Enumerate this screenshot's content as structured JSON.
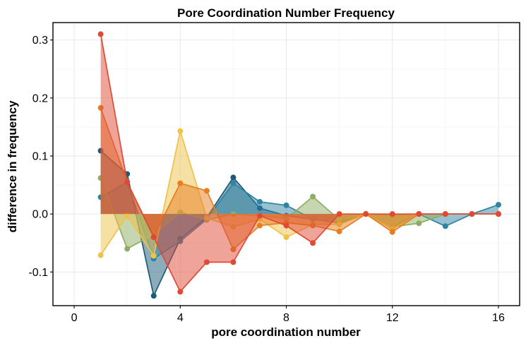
{
  "chart_data": {
    "type": "area",
    "title": "Pore Coordination Number Frequency",
    "xlabel": "pore coordination number",
    "ylabel": "difference in frequency",
    "xlim": [
      -0.8,
      16.8
    ],
    "ylim": [
      -0.158,
      0.33
    ],
    "xticks": [
      0,
      4,
      8,
      12,
      16
    ],
    "xtick_labels": [
      "0",
      "4",
      "8",
      "12",
      "16"
    ],
    "yticks": [
      -0.1,
      0.0,
      0.1,
      0.2,
      0.3
    ],
    "ytick_labels": [
      "-0.1",
      "0.0",
      "0.1",
      "0.2",
      "0.3"
    ],
    "grid": true,
    "colors": {
      "navy": "#1b5a78",
      "teal": "#2f84a4",
      "olive": "#8cae62",
      "yellow": "#efc24a",
      "orange": "#e67e22",
      "red": "#e04a35"
    },
    "series": [
      {
        "color": "#1b5a78",
        "x": [
          1,
          2,
          3,
          4,
          5,
          6,
          7,
          8,
          9,
          10,
          11,
          12,
          13,
          14,
          15,
          16
        ],
        "values": [
          0.109,
          0.069,
          -0.141,
          -0.043,
          -0.006,
          0.063,
          0.01,
          -0.003,
          -0.009,
          -0.015,
          0.0,
          -0.022,
          0.0,
          0.0,
          0.0,
          0.0
        ]
      },
      {
        "color": "#2f84a4",
        "x": [
          1,
          2,
          3,
          4,
          5,
          6,
          7,
          8,
          9,
          10,
          11,
          12,
          13,
          14,
          15,
          16
        ],
        "values": [
          0.029,
          0.055,
          -0.077,
          -0.047,
          -0.009,
          0.053,
          0.021,
          0.015,
          -0.009,
          -0.016,
          0.0,
          -0.003,
          0.0,
          -0.021,
          0.0,
          0.016
        ]
      },
      {
        "color": "#8cae62",
        "x": [
          1,
          2,
          3,
          4,
          5,
          6,
          7,
          8,
          9,
          10,
          11,
          12,
          13,
          14,
          15,
          16
        ],
        "values": [
          0.062,
          -0.06,
          -0.035,
          0.003,
          -0.01,
          0.0,
          -0.003,
          -0.008,
          0.03,
          -0.01,
          0.0,
          -0.022,
          -0.016,
          0.0,
          0.0,
          0.0
        ]
      },
      {
        "color": "#efc24a",
        "x": [
          1,
          2,
          3,
          4,
          5,
          6,
          7,
          8,
          9,
          10,
          11,
          12,
          13,
          14,
          15,
          16
        ],
        "values": [
          -0.071,
          -0.003,
          -0.072,
          0.143,
          -0.007,
          -0.022,
          -0.009,
          -0.04,
          -0.018,
          -0.018,
          0.0,
          -0.026,
          0.0,
          0.0,
          0.0,
          0.0
        ]
      },
      {
        "color": "#e67e22",
        "x": [
          1,
          2,
          3,
          4,
          5,
          6,
          7,
          8,
          9,
          10,
          11,
          12,
          13,
          14,
          15,
          16
        ],
        "values": [
          0.183,
          0.055,
          -0.039,
          0.053,
          0.04,
          -0.061,
          -0.02,
          -0.015,
          -0.02,
          -0.03,
          0.0,
          -0.031,
          0.0,
          0.0,
          0.0,
          0.0
        ]
      },
      {
        "color": "#e04a35",
        "x": [
          1,
          2,
          3,
          4,
          5,
          6,
          7,
          8,
          9,
          10,
          11,
          12,
          13,
          14,
          15,
          16
        ],
        "values": [
          0.31,
          0.055,
          -0.04,
          -0.134,
          -0.083,
          -0.083,
          -0.003,
          -0.02,
          -0.05,
          0.0,
          0.0,
          0.0,
          0.0,
          0.0,
          0.0,
          0.0
        ]
      }
    ]
  }
}
